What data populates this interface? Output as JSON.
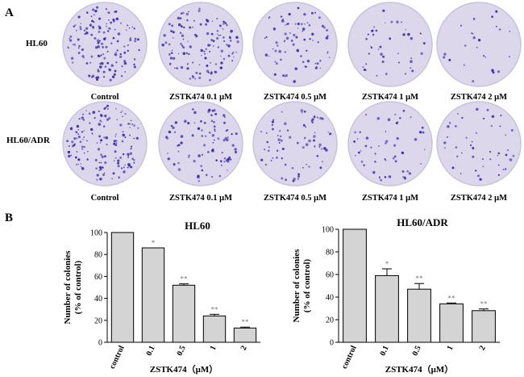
{
  "figure": {
    "panel_a_label": "A",
    "panel_b_label": "B",
    "rows": [
      {
        "label": "HL60",
        "conditions": [
          "Control",
          "ZSTK474 0.1 μM",
          "ZSTK474 0.5 μM",
          "ZSTK474 1 μM",
          "ZSTK474 2 μM"
        ],
        "colony_density": [
          1.0,
          0.86,
          0.52,
          0.24,
          0.13
        ]
      },
      {
        "label": "HL60/ADR",
        "conditions": [
          "Control",
          "ZSTK474 0.1 μM",
          "ZSTK474 0.5 μM",
          "ZSTK474 1 μM",
          "ZSTK474 2 μM"
        ],
        "colony_density": [
          1.0,
          0.59,
          0.47,
          0.34,
          0.28
        ]
      }
    ],
    "colors": {
      "dish_bg": "#dcd7ea",
      "dish_rim": "#c9c2de",
      "colony": "#3a2fb0",
      "bar": "#d4d4d4"
    }
  },
  "chart_data": [
    {
      "type": "bar",
      "title": "HL60",
      "ylabel_line1": "Number of colonies",
      "ylabel_line2": "(% of control)",
      "xlabel": "ZSTK474（μM）",
      "categories": [
        "control",
        "0.1",
        "0.5",
        "1",
        "2"
      ],
      "values": [
        100,
        86,
        52,
        24,
        13
      ],
      "errors": [
        0,
        0,
        1.2,
        1.5,
        0.8
      ],
      "significance": [
        "",
        "*",
        "**",
        "**",
        "**"
      ],
      "ylim": [
        0,
        100
      ],
      "yticks": [
        "0",
        "20",
        "40",
        "60",
        "80",
        "100"
      ]
    },
    {
      "type": "bar",
      "title": "HL60/ADR",
      "ylabel_line1": "Number of colonies",
      "ylabel_line2": "(% of control)",
      "xlabel": "ZSTK474（μM）",
      "categories": [
        "control",
        "0.1",
        "0.5",
        "1",
        "2"
      ],
      "values": [
        100,
        59,
        47,
        34,
        28
      ],
      "errors": [
        0,
        6,
        5,
        0.8,
        1.5
      ],
      "significance": [
        "",
        "*",
        "**",
        "**",
        "**"
      ],
      "ylim": [
        0,
        100
      ],
      "yticks": [
        "0",
        "20",
        "40",
        "60",
        "80",
        "100"
      ]
    }
  ]
}
